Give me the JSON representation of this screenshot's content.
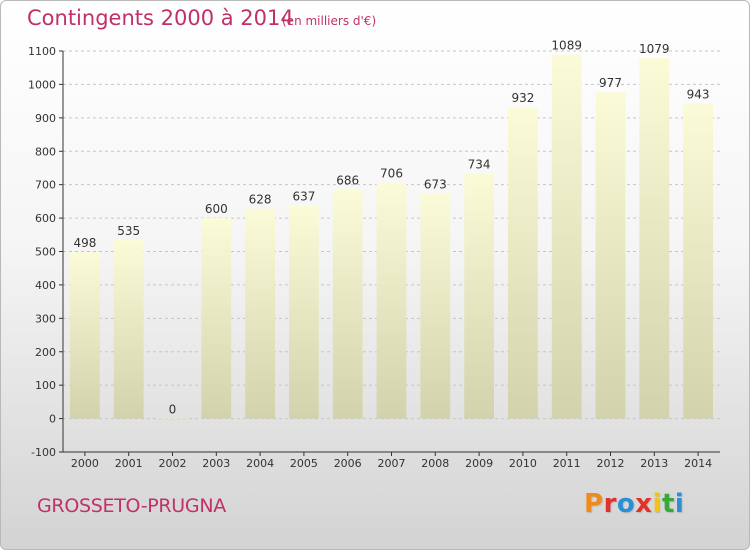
{
  "header": {
    "title": "Contingents 2000 à 2014",
    "subtitle": "(en milliers d'€)"
  },
  "footer": {
    "commune": "GROSSETO-PRUGNA",
    "logo_text": "Proxiti",
    "logo_colors": [
      "#f08a1c",
      "#e0322a",
      "#2a8fd6",
      "#e0322a",
      "#f2c21a",
      "#39a83c",
      "#2a8fd6"
    ]
  },
  "colors": {
    "title": "#c0306a",
    "bar_light": "#fbfbd8",
    "bar_dark": "#d2d2ac",
    "grid": "#c6c6c6",
    "axis": "#333333",
    "text": "#333333"
  },
  "chart_data": {
    "type": "bar",
    "title": "Contingents 2000 à 2014",
    "subtitle": "(en milliers d'€)",
    "categories": [
      "2000",
      "2001",
      "2002",
      "2003",
      "2004",
      "2005",
      "2006",
      "2007",
      "2008",
      "2009",
      "2010",
      "2011",
      "2012",
      "2013",
      "2014"
    ],
    "values": [
      498,
      535,
      0,
      600,
      628,
      637,
      686,
      706,
      673,
      734,
      932,
      1089,
      977,
      1079,
      943
    ],
    "value_labels": [
      "498",
      "535",
      "0",
      "600",
      "628",
      "637",
      "686",
      "706",
      "673",
      "734",
      "932",
      "1089",
      "977",
      "1079",
      "943"
    ],
    "ylim": [
      -100,
      1100
    ],
    "yticks": [
      -100,
      0,
      100,
      200,
      300,
      400,
      500,
      600,
      700,
      800,
      900,
      1000,
      1100
    ],
    "ytick_labels": [
      "-100",
      "0",
      "100",
      "200",
      "300",
      "400",
      "500",
      "600",
      "700",
      "800",
      "900",
      "1000",
      "1100"
    ],
    "grid": true,
    "xlabel": "",
    "ylabel": ""
  }
}
